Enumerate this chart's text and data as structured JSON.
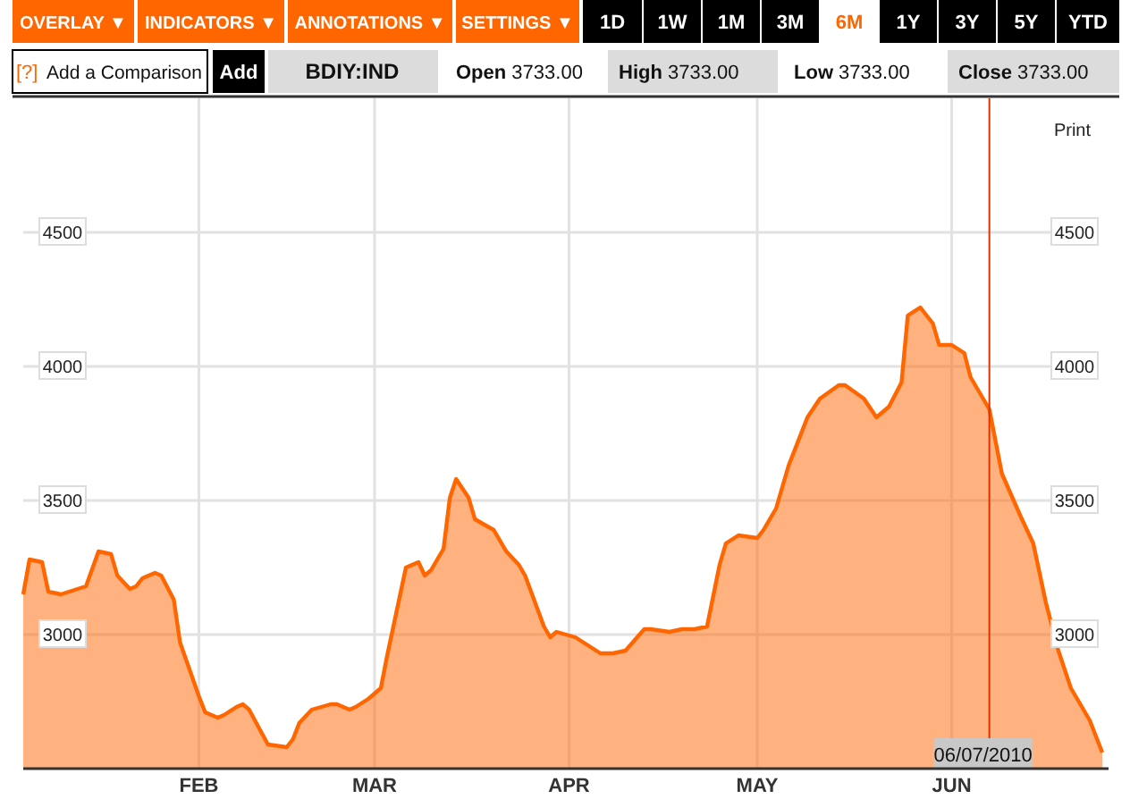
{
  "chart_data": {
    "type": "area",
    "title": "BDIY:IND",
    "x": [
      "2010-01-04",
      "2010-01-05",
      "2010-01-07",
      "2010-01-08",
      "2010-01-10",
      "2010-01-14",
      "2010-01-16",
      "2010-01-18",
      "2010-01-19",
      "2010-01-21",
      "2010-01-22",
      "2010-01-23",
      "2010-01-25",
      "2010-01-26",
      "2010-01-28",
      "2010-01-29",
      "2010-02-01",
      "2010-02-02",
      "2010-02-04",
      "2010-02-05",
      "2010-02-07",
      "2010-02-08",
      "2010-02-09",
      "2010-02-12",
      "2010-02-15",
      "2010-02-16",
      "2010-02-17",
      "2010-02-19",
      "2010-02-22",
      "2010-02-23",
      "2010-02-25",
      "2010-02-26",
      "2010-02-28",
      "2010-03-02",
      "2010-03-03",
      "2010-03-05",
      "2010-03-06",
      "2010-03-08",
      "2010-03-09",
      "2010-03-10",
      "2010-03-12",
      "2010-03-13",
      "2010-03-14",
      "2010-03-16",
      "2010-03-17",
      "2010-03-20",
      "2010-03-22",
      "2010-03-24",
      "2010-03-25",
      "2010-03-28",
      "2010-03-29",
      "2010-03-30",
      "2010-04-02",
      "2010-04-04",
      "2010-04-06",
      "2010-04-08",
      "2010-04-10",
      "2010-04-13",
      "2010-04-14",
      "2010-04-17",
      "2010-04-19",
      "2010-04-21",
      "2010-04-23",
      "2010-04-25",
      "2010-04-26",
      "2010-04-28",
      "2010-05-01",
      "2010-05-02",
      "2010-05-04",
      "2010-05-06",
      "2010-05-09",
      "2010-05-11",
      "2010-05-14",
      "2010-05-15",
      "2010-05-18",
      "2010-05-20",
      "2010-05-22",
      "2010-05-24",
      "2010-05-25",
      "2010-05-27",
      "2010-05-29",
      "2010-05-30",
      "2010-06-01",
      "2010-06-03",
      "2010-06-04",
      "2010-06-07",
      "2010-06-09",
      "2010-06-12",
      "2010-06-14",
      "2010-06-16",
      "2010-06-18",
      "2010-06-20",
      "2010-06-23",
      "2010-06-25"
    ],
    "series": [
      {
        "color": "#ff6600",
        "values": [
          3150,
          3280,
          3270,
          3160,
          3150,
          3180,
          3310,
          3300,
          3220,
          3170,
          3180,
          3210,
          3230,
          3220,
          3130,
          2970,
          2770,
          2710,
          2690,
          2700,
          2730,
          2740,
          2720,
          2590,
          2580,
          2610,
          2670,
          2720,
          2740,
          2740,
          2720,
          2730,
          2760,
          2800,
          2920,
          3140,
          3250,
          3270,
          3220,
          3240,
          3320,
          3510,
          3580,
          3510,
          3430,
          3390,
          3310,
          3260,
          3220,
          3030,
          2990,
          3010,
          2990,
          2960,
          2930,
          2930,
          2940,
          3020,
          3020,
          3010,
          3020,
          3020,
          3030,
          3260,
          3340,
          3370,
          3360,
          3390,
          3470,
          3630,
          3810,
          3880,
          3930,
          3930,
          3880,
          3810,
          3850,
          3940,
          4190,
          4220,
          4160,
          4080,
          4080,
          4050,
          3960,
          3840,
          3600,
          3440,
          3340,
          3120,
          2940,
          2800,
          2680,
          2560
        ]
      }
    ],
    "xlim": [
      "2010-01-04",
      "2010-06-26"
    ],
    "xticks": [
      {
        "value": "2010-02-01",
        "label": "FEB"
      },
      {
        "value": "2010-03-01",
        "label": "MAR"
      },
      {
        "value": "2010-04-01",
        "label": "APR"
      },
      {
        "value": "2010-05-01",
        "label": "MAY"
      },
      {
        "value": "2010-06-01",
        "label": "JUN"
      }
    ],
    "ylim": [
      2500,
      5000
    ],
    "yticks": [
      3000,
      3500,
      4000,
      4500
    ],
    "y2lim": [
      2500,
      5000
    ],
    "y2ticks": [
      3000,
      3500,
      4000,
      4500
    ],
    "grid": true,
    "ref_lines": [
      {
        "axis": "x",
        "value": "2010-06-07",
        "label": "06/07/2010",
        "color": "#dd3300"
      }
    ],
    "annotations": [
      "OVERLAY ▼",
      "INDICATORS ▼",
      "ANNOTATIONS ▼",
      "SETTINGS ▼",
      "1D",
      "1W",
      "1M",
      "3M",
      "6M",
      "1Y",
      "3Y",
      "5Y",
      "YTD",
      "[?]",
      "Add a Comparison",
      "Add",
      "Open 3733.00",
      "High 3733.00",
      "Low 3733.00",
      "Close 3733.00",
      "Print"
    ]
  }
}
